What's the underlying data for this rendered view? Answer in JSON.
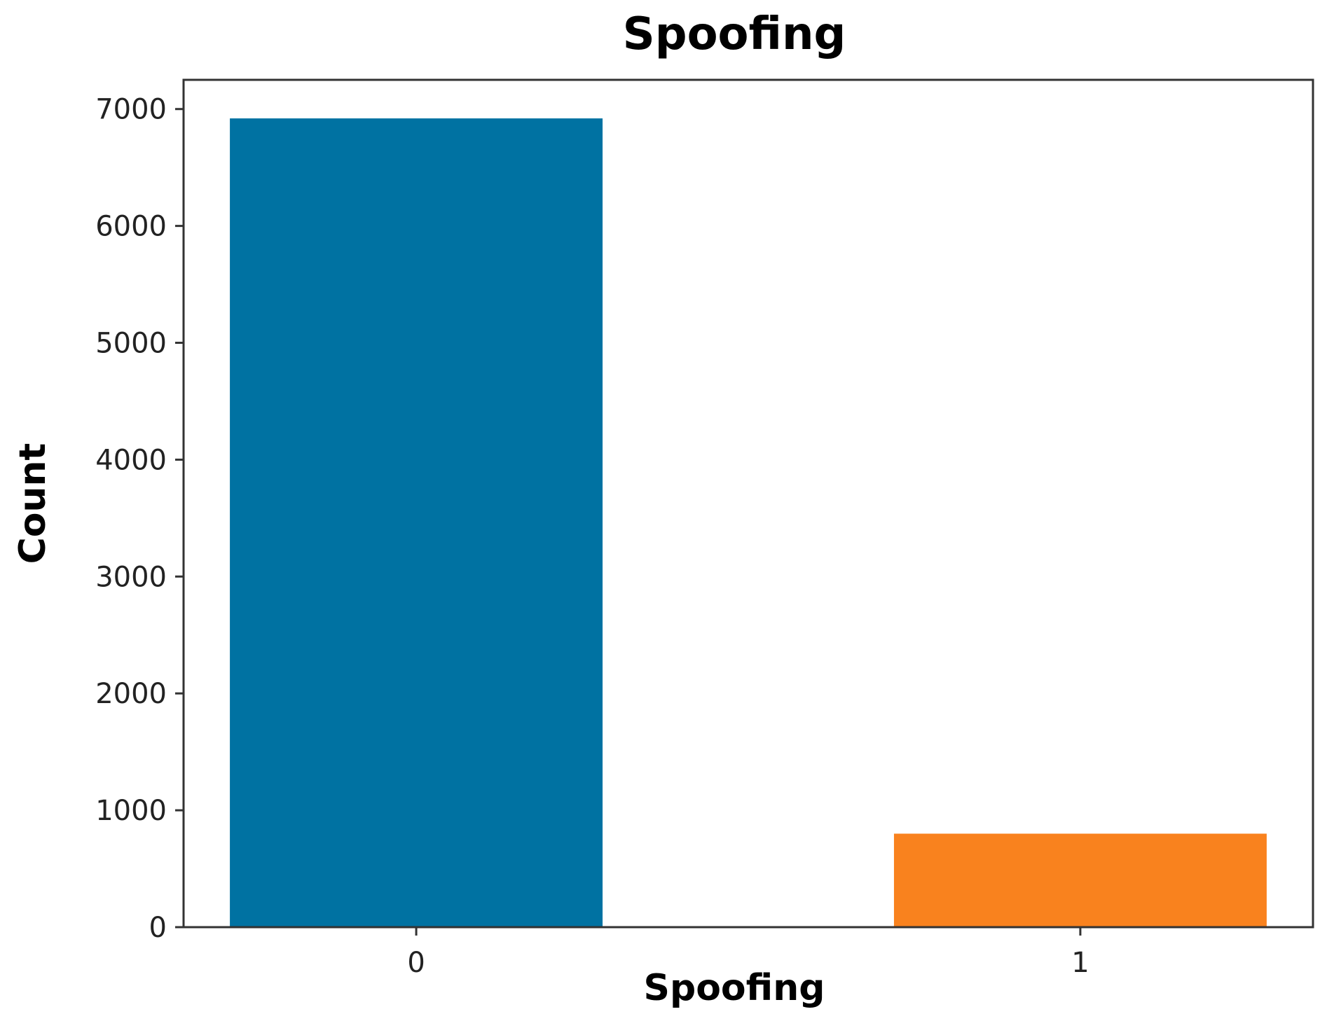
{
  "chart_data": {
    "type": "bar",
    "title": "Spoofing",
    "xlabel": "Spoofing",
    "ylabel": "Count",
    "categories": [
      "0",
      "1"
    ],
    "values": [
      6920,
      800
    ],
    "colors": [
      "#0072a2",
      "#f9821e"
    ],
    "ylim": [
      0,
      7250
    ],
    "yticks": [
      0,
      1000,
      2000,
      3000,
      4000,
      5000,
      6000,
      7000
    ],
    "grid": false,
    "legend": "none"
  }
}
